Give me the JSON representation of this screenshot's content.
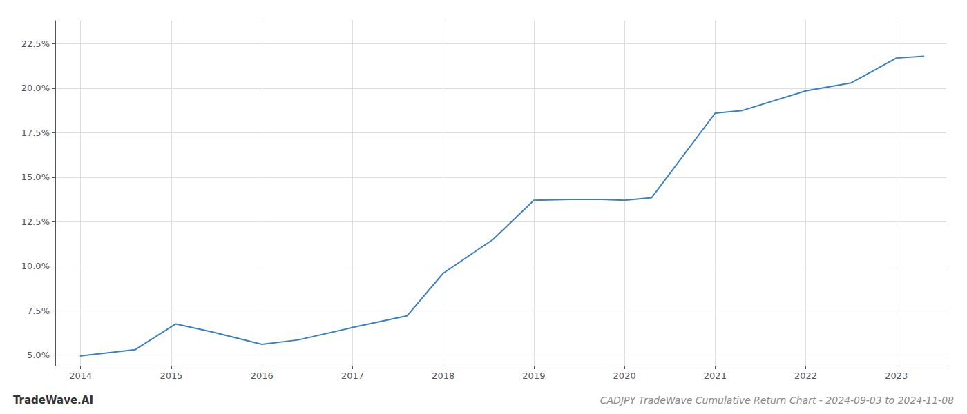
{
  "chart_data": {
    "type": "line",
    "title": "CADJPY TradeWave Cumulative Return Chart - 2024-09-03 to 2024-11-08",
    "annotations": [
      "TradeWave.AI"
    ],
    "x": [
      2014.0,
      2014.6,
      2015.05,
      2015.45,
      2016.0,
      2016.4,
      2017.0,
      2017.6,
      2018.0,
      2018.55,
      2019.0,
      2019.4,
      2019.75,
      2020.0,
      2020.3,
      2021.0,
      2021.3,
      2022.0,
      2022.5,
      2023.0,
      2023.3
    ],
    "values": [
      4.95,
      5.3,
      6.75,
      6.3,
      5.6,
      5.85,
      6.55,
      7.2,
      9.6,
      11.5,
      13.7,
      13.75,
      13.75,
      13.7,
      13.85,
      18.6,
      18.75,
      19.85,
      20.3,
      21.7,
      21.8
    ],
    "color": "#3a7fc1",
    "xlim": [
      2013.72,
      2023.55
    ],
    "xticks": [
      2014,
      2015,
      2016,
      2017,
      2018,
      2019,
      2020,
      2021,
      2022,
      2023
    ],
    "ylim": [
      4.4,
      23.8
    ],
    "yticks": [
      {
        "value": 5.0,
        "label": "5.0%"
      },
      {
        "value": 7.5,
        "label": "7.5%"
      },
      {
        "value": 10.0,
        "label": "10.0%"
      },
      {
        "value": 12.5,
        "label": "12.5%"
      },
      {
        "value": 15.0,
        "label": "15.0%"
      },
      {
        "value": 17.5,
        "label": "17.5%"
      },
      {
        "value": 20.0,
        "label": "20.0%"
      },
      {
        "value": 22.5,
        "label": "22.5%"
      }
    ],
    "grid": true
  }
}
